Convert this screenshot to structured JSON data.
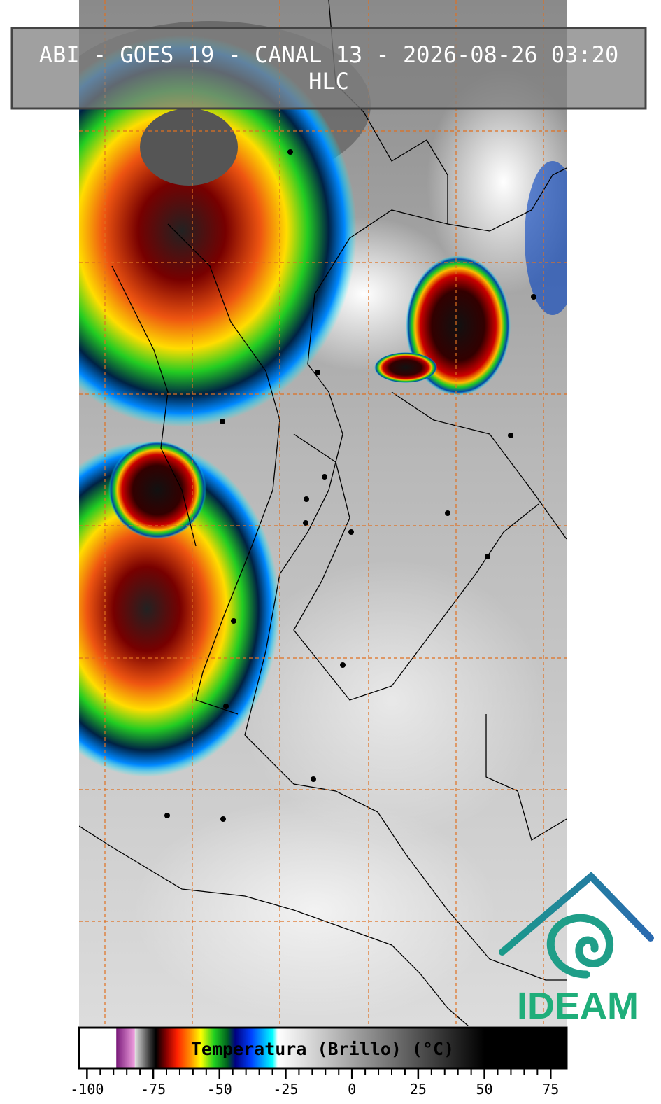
{
  "header": {
    "title": "ABI - GOES 19 - CANAL 13 - 2026-08-26 03:20",
    "subtitle": "HLC"
  },
  "colorbar": {
    "label": "Temperatura (Brillo) (°C)",
    "lim": [
      -103,
      81
    ],
    "ticks": [
      -100,
      -75,
      -50,
      -25,
      0,
      25,
      50,
      75
    ],
    "colormap": [
      {
        "value": -103,
        "color": "#ffffff"
      },
      {
        "value": -89,
        "color": "#ffffff"
      },
      {
        "value": -88.9,
        "color": "#7a1a7a"
      },
      {
        "value": -82,
        "color": "#f0a0e0"
      },
      {
        "value": -81.9,
        "color": "#e0e0e0"
      },
      {
        "value": -76,
        "color": "#303030"
      },
      {
        "value": -74,
        "color": "#000000"
      },
      {
        "value": -70,
        "color": "#8a0000"
      },
      {
        "value": -66,
        "color": "#ff2000"
      },
      {
        "value": -61,
        "color": "#ff9000"
      },
      {
        "value": -57,
        "color": "#ffff00"
      },
      {
        "value": -52,
        "color": "#20d020"
      },
      {
        "value": -47,
        "color": "#006020"
      },
      {
        "value": -44,
        "color": "#000080"
      },
      {
        "value": -38,
        "color": "#0040ff"
      },
      {
        "value": -30,
        "color": "#00ffff"
      },
      {
        "value": -28,
        "color": "#ffffff"
      },
      {
        "value": 50,
        "color": "#000000"
      },
      {
        "value": 81,
        "color": "#000000"
      }
    ]
  },
  "logo": {
    "text": "IDEAM"
  }
}
